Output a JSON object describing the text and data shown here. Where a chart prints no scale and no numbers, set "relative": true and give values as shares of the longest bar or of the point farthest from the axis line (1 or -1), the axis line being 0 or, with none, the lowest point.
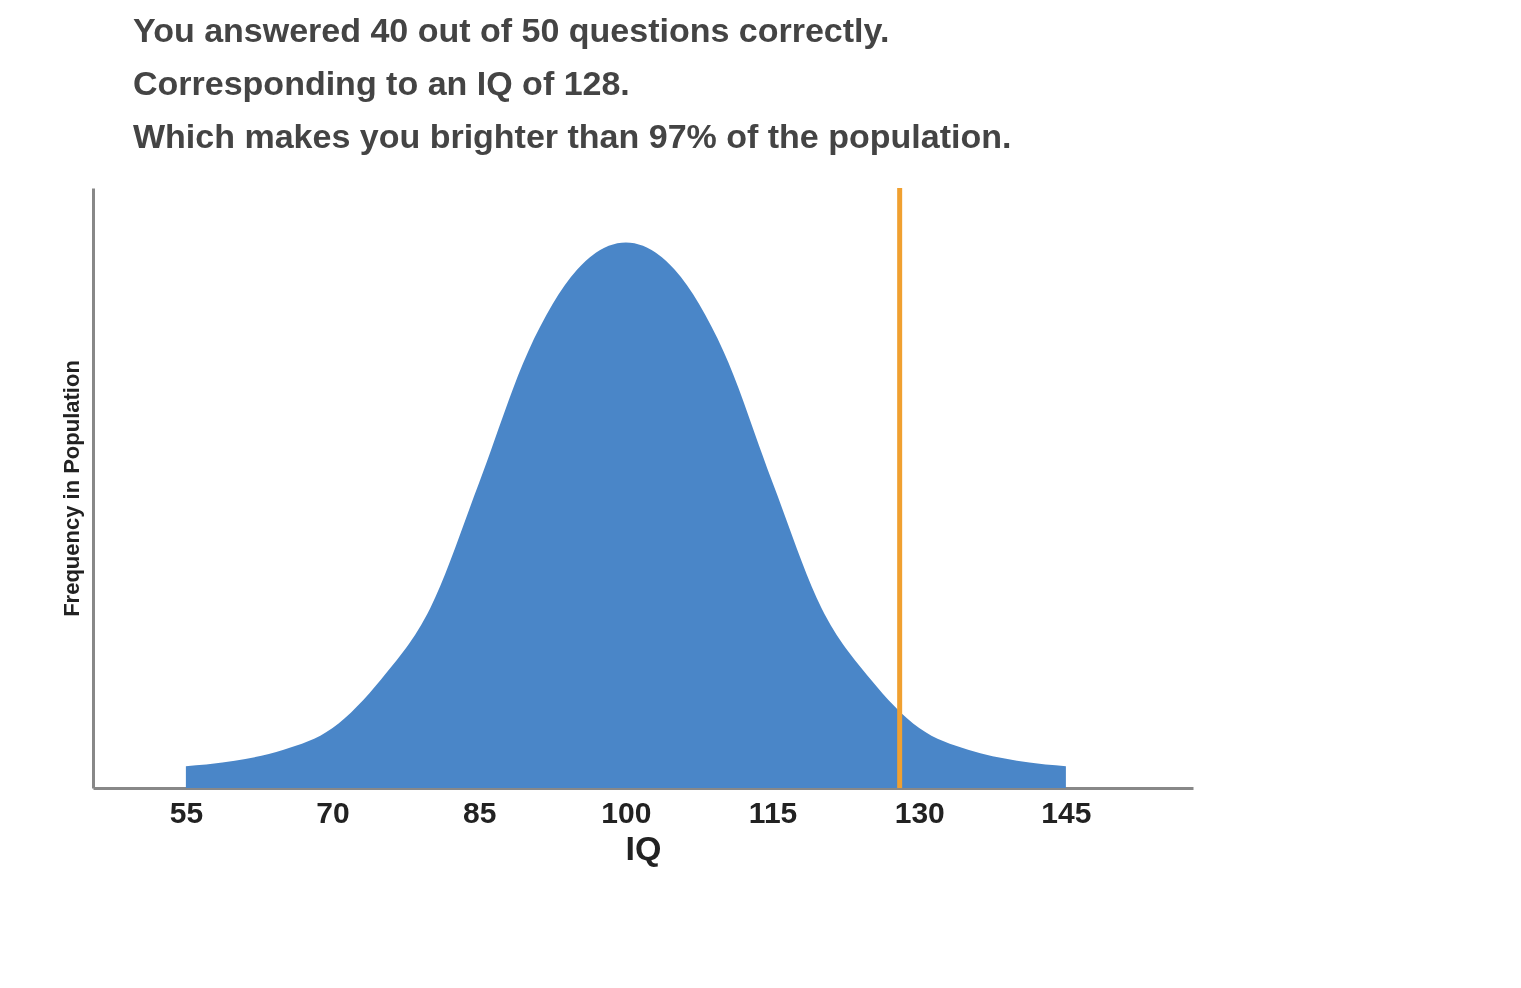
{
  "chart_data": {
    "type": "area",
    "relative": true,
    "annotations": [
      "You answered 40 out of 50 questions correctly.",
      "Corresponding to an IQ of 128.",
      "Which makes you brighter than 97% of the population."
    ],
    "xlabel": "IQ",
    "ylabel": "Frequency in Population",
    "x": [
      55,
      60,
      65,
      70,
      75,
      80,
      85,
      90,
      95,
      100,
      105,
      110,
      115,
      120,
      125,
      130,
      135,
      140,
      145
    ],
    "series": [
      {
        "color": "#4a86c8",
        "values": [
          0.04,
          0.05,
          0.07,
          0.11,
          0.2,
          0.33,
          0.56,
          0.8,
          0.95,
          1,
          0.95,
          0.8,
          0.56,
          0.33,
          0.2,
          0.11,
          0.07,
          0.05,
          0.04
        ]
      }
    ],
    "xlim": [
      45.5,
      158
    ],
    "xticks": [
      55,
      70,
      85,
      100,
      115,
      130,
      145
    ],
    "ref_lines": [
      {
        "axis": "x",
        "value": 128,
        "color": "#f0a030"
      }
    ],
    "grid": false
  }
}
